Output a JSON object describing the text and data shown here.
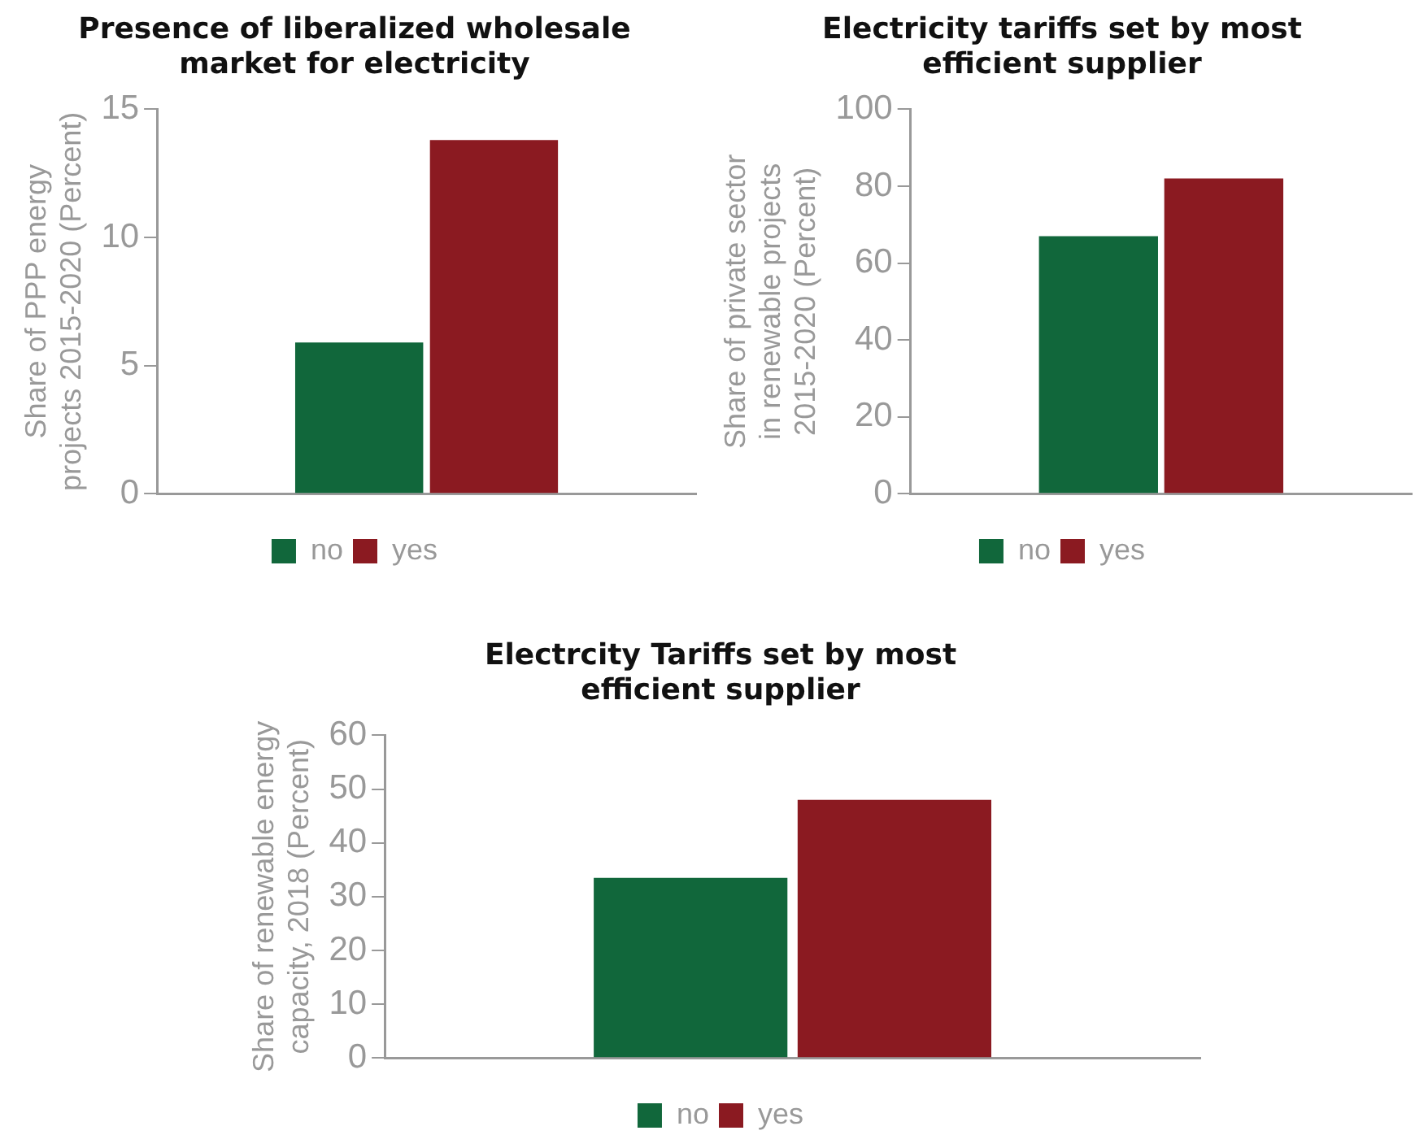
{
  "chart_data": [
    {
      "type": "bar",
      "title": "Presence of liberalized wholesale market for electricity",
      "ylabel": "Share of PPP energy projects 2015-2020 (Percent)",
      "categories": [
        null
      ],
      "series": [
        {
          "name": "no",
          "color": "#11673b",
          "values": [
            5.9
          ]
        },
        {
          "name": "yes",
          "color": "#8b1a21",
          "values": [
            13.8
          ]
        }
      ],
      "ylim": [
        0,
        15
      ],
      "yticks": [
        0,
        5,
        10,
        15
      ],
      "grid": false,
      "legend": "bottom"
    },
    {
      "type": "bar",
      "title": "Electricity tariffs set by most efficient supplier",
      "ylabel": "Share of private sector in renewable projects 2015-2020 (Percent)",
      "categories": [
        null
      ],
      "series": [
        {
          "name": "no",
          "color": "#11673b",
          "values": [
            67
          ]
        },
        {
          "name": "yes",
          "color": "#8b1a21",
          "values": [
            82
          ]
        }
      ],
      "ylim": [
        0,
        100
      ],
      "yticks": [
        0,
        20,
        40,
        60,
        80,
        100
      ],
      "grid": false,
      "legend": "bottom"
    },
    {
      "type": "bar",
      "title": "Electrcity Tariffs set by most efficient supplier",
      "ylabel": "Share of renewable energy capacity, 2018 (Percent)",
      "categories": [
        null
      ],
      "series": [
        {
          "name": "no",
          "color": "#11673b",
          "values": [
            33.5
          ]
        },
        {
          "name": "yes",
          "color": "#8b1a21",
          "values": [
            48
          ]
        }
      ],
      "ylim": [
        0,
        60
      ],
      "yticks": [
        0,
        10,
        20,
        30,
        40,
        50,
        60
      ],
      "grid": false,
      "legend": "bottom"
    }
  ]
}
